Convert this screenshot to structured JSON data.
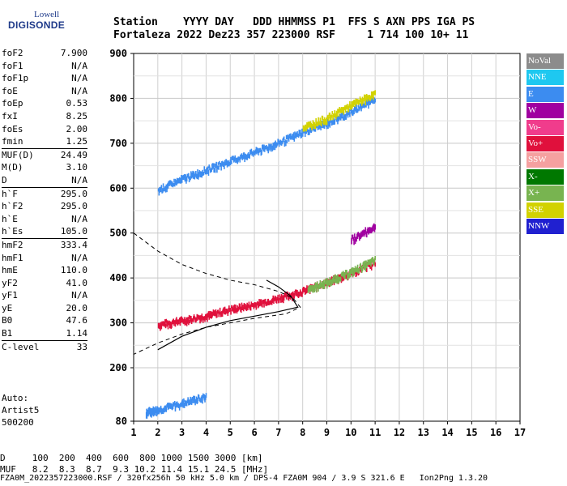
{
  "logo": {
    "line1": "Lowell",
    "line2": "DIGISONDE"
  },
  "header": {
    "labels": "Station    YYYY DAY   DDD HHMMSS P1  FFS S AXN PPS IGA PS",
    "values": "Fortaleza 2022 Dez23 357 223000 RSF     1 714 100 10+ 11"
  },
  "params": [
    {
      "name": "foF2",
      "value": "7.900"
    },
    {
      "name": "foF1",
      "value": "N/A"
    },
    {
      "name": "foF1p",
      "value": "N/A"
    },
    {
      "name": "foE",
      "value": "N/A"
    },
    {
      "name": "foEp",
      "value": "0.53"
    },
    {
      "name": "fxI",
      "value": "8.25"
    },
    {
      "name": "foEs",
      "value": "2.00"
    },
    {
      "name": "fmin",
      "value": "1.25"
    },
    {
      "name": "MUF(D)",
      "value": "24.49",
      "sep": true
    },
    {
      "name": "M(D)",
      "value": "3.10"
    },
    {
      "name": "D",
      "value": "N/A"
    },
    {
      "name": "h`F",
      "value": "295.0",
      "sep": true
    },
    {
      "name": "h`F2",
      "value": "295.0"
    },
    {
      "name": "h`E",
      "value": "N/A"
    },
    {
      "name": "h`Es",
      "value": "105.0"
    },
    {
      "name": "hmF2",
      "value": "333.4",
      "sep": true
    },
    {
      "name": "hmF1",
      "value": "N/A"
    },
    {
      "name": "hmE",
      "value": "110.0"
    },
    {
      "name": "yF2",
      "value": "41.0"
    },
    {
      "name": "yF1",
      "value": "N/A"
    },
    {
      "name": "yE",
      "value": "20.0"
    },
    {
      "name": "B0",
      "value": "47.6"
    },
    {
      "name": "B1",
      "value": "1.14"
    },
    {
      "name": "C-level",
      "value": "33",
      "sep": true
    }
  ],
  "auto": {
    "line1": "Auto:",
    "line2": "Artist5",
    "line3": "500200"
  },
  "legend": [
    {
      "label": "NoVal",
      "color": "#8c8c8c"
    },
    {
      "label": "NNE",
      "color": "#1ec8f0"
    },
    {
      "label": "E",
      "color": "#3c8cf0"
    },
    {
      "label": "W",
      "color": "#a000a0"
    },
    {
      "label": "Vo-",
      "color": "#f03c8c"
    },
    {
      "label": "Vo+",
      "color": "#e0103c"
    },
    {
      "label": "SSW",
      "color": "#f5a0a0"
    },
    {
      "label": "X-",
      "color": "#007800"
    },
    {
      "label": "X+",
      "color": "#78b450"
    },
    {
      "label": "SSE",
      "color": "#d2d200"
    },
    {
      "label": "NNW",
      "color": "#2020d0"
    }
  ],
  "chart_data": {
    "type": "scatter",
    "x_ticks": [
      "1",
      "2",
      "3",
      "4",
      "5",
      "6",
      "7",
      "8",
      "9",
      "10",
      "11",
      "12",
      "13",
      "14",
      "15",
      "16",
      "17"
    ],
    "y_ticks": [
      "80",
      "200",
      "300",
      "400",
      "500",
      "600",
      "700",
      "800",
      "900"
    ],
    "xlim": [
      1,
      17
    ],
    "ylim_labels": [
      80,
      900
    ],
    "grid": true,
    "ionogram_traces": [
      {
        "name": "F2 O-trace",
        "color": "#e0103c",
        "points": [
          [
            2.0,
            300
          ],
          [
            3.0,
            310
          ],
          [
            4.0,
            320
          ],
          [
            5.0,
            335
          ],
          [
            6.0,
            345
          ],
          [
            7.0,
            360
          ],
          [
            8.0,
            375
          ],
          [
            9.0,
            395
          ],
          [
            10.0,
            415
          ],
          [
            11.0,
            440
          ]
        ]
      },
      {
        "name": "F2 O-trace upper",
        "color": "#78b450",
        "points": [
          [
            8.2,
            380
          ],
          [
            9.0,
            395
          ],
          [
            10.0,
            418
          ],
          [
            11.0,
            445
          ]
        ]
      },
      {
        "name": "F2 multihop",
        "color": "#3c8cf0",
        "points": [
          [
            2.0,
            600
          ],
          [
            3.0,
            625
          ],
          [
            4.0,
            645
          ],
          [
            5.0,
            665
          ],
          [
            6.0,
            685
          ],
          [
            7.0,
            705
          ],
          [
            8.0,
            730
          ],
          [
            9.0,
            750
          ],
          [
            10.0,
            775
          ],
          [
            11.0,
            805
          ]
        ]
      },
      {
        "name": "F2 multihop yellow",
        "color": "#d2d200",
        "points": [
          [
            8.0,
            740
          ],
          [
            9.0,
            760
          ],
          [
            10.0,
            790
          ],
          [
            11.0,
            815
          ]
        ]
      },
      {
        "name": "X trace",
        "color": "#a000a0",
        "points": [
          [
            10.0,
            490
          ],
          [
            11.0,
            520
          ]
        ]
      },
      {
        "name": "Es",
        "color": "#3c8cf0",
        "points": [
          [
            1.5,
            105
          ],
          [
            2.0,
            110
          ],
          [
            3.0,
            125
          ],
          [
            4.0,
            140
          ]
        ]
      }
    ],
    "profile_dashed": [
      [
        1.0,
        500
      ],
      [
        2.0,
        460
      ],
      [
        3.0,
        430
      ],
      [
        4.0,
        410
      ],
      [
        5.0,
        395
      ],
      [
        6.0,
        385
      ],
      [
        7.0,
        370
      ],
      [
        7.6,
        355
      ],
      [
        7.9,
        335
      ],
      [
        7.3,
        320
      ],
      [
        6.0,
        310
      ],
      [
        4.0,
        290
      ],
      [
        3.0,
        275
      ],
      [
        2.0,
        255
      ],
      [
        1.0,
        230
      ]
    ],
    "profile_solid": [
      [
        2.0,
        240
      ],
      [
        3.0,
        270
      ],
      [
        4.0,
        290
      ],
      [
        5.0,
        305
      ],
      [
        6.0,
        315
      ],
      [
        7.0,
        325
      ],
      [
        7.8,
        335
      ],
      [
        7.5,
        360
      ],
      [
        7.0,
        380
      ],
      [
        6.5,
        395
      ]
    ]
  },
  "bottom": {
    "line1": "D     100  200  400  600  800 1000 1500 3000 [km]",
    "line2": "MUF   8.2  8.3  8.7  9.3 10.2 11.4 15.1 24.5 [MHz]"
  },
  "footer": "FZA0M_2022357223000.RSF / 320fx256h 50 kHz 5.0 km / DPS-4 FZA0M 904 / 3.9 S 321.6 E   Ion2Png 1.3.20"
}
